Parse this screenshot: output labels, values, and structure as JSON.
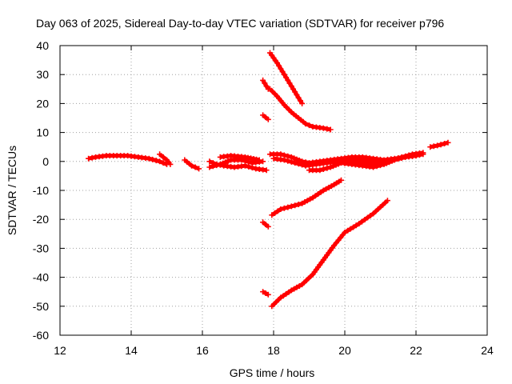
{
  "chart_data": {
    "type": "scatter",
    "title": "Day 063 of 2025, Sidereal Day-to-day VTEC variation (SDTVAR) for receiver p796",
    "xlabel": "GPS time / hours",
    "ylabel": "SDTVAR / TECUs",
    "xlim": [
      12,
      24
    ],
    "ylim": [
      -60,
      40
    ],
    "x_ticks": [
      12,
      14,
      16,
      18,
      20,
      22,
      24
    ],
    "y_ticks": [
      -60,
      -50,
      -40,
      -30,
      -20,
      -10,
      0,
      10,
      20,
      30,
      40
    ],
    "x_tick_labels": [
      "12",
      "14",
      "16",
      "18",
      "20",
      "22",
      "24"
    ],
    "y_tick_labels": [
      "-60",
      "-50",
      "-40",
      "-30",
      "-20",
      "-10",
      "0",
      "10",
      "20",
      "30",
      "40"
    ],
    "grid": true,
    "legend": "none",
    "marker": "plus",
    "color": "#ff0000",
    "series": [
      {
        "x": [
          12.8,
          13.0,
          13.3,
          13.6,
          13.9,
          14.2,
          14.5,
          14.8,
          15.0
        ],
        "y": [
          1.0,
          1.5,
          2.0,
          2.0,
          2.0,
          1.5,
          1.0,
          0.0,
          -1.0
        ]
      },
      {
        "x": [
          14.8,
          14.9,
          15.0,
          15.1
        ],
        "y": [
          2.5,
          1.5,
          0.5,
          -1.0
        ]
      },
      {
        "x": [
          15.5,
          15.7,
          15.9
        ],
        "y": [
          0.5,
          -1.5,
          -2.5
        ]
      },
      {
        "x": [
          16.2,
          16.4,
          16.6,
          16.9,
          17.2,
          17.5,
          17.8
        ],
        "y": [
          0.0,
          -1.0,
          -1.5,
          -2.0,
          -1.5,
          -2.5,
          -3.0
        ]
      },
      {
        "x": [
          16.2,
          16.5,
          16.8,
          17.1,
          17.4,
          17.7
        ],
        "y": [
          -2.0,
          -1.0,
          0.5,
          0.5,
          -0.5,
          0.0
        ]
      },
      {
        "x": [
          16.5,
          16.8,
          17.2,
          17.6
        ],
        "y": [
          1.5,
          2.0,
          1.5,
          0.5
        ]
      },
      {
        "x": [
          17.7,
          17.85
        ],
        "y": [
          28.0,
          25.0
        ]
      },
      {
        "x": [
          17.7,
          17.85
        ],
        "y": [
          16.0,
          14.5
        ]
      },
      {
        "x": [
          17.7,
          17.85
        ],
        "y": [
          -21.0,
          -22.5
        ]
      },
      {
        "x": [
          17.7,
          17.85
        ],
        "y": [
          -45.0,
          -46.0
        ]
      },
      {
        "x": [
          17.9,
          18.1,
          18.3,
          18.5,
          18.7,
          18.8
        ],
        "y": [
          37.5,
          34.0,
          30.0,
          26.0,
          22.0,
          20.0
        ]
      },
      {
        "x": [
          17.9,
          18.1,
          18.3,
          18.5,
          18.7,
          18.9,
          19.1,
          19.4,
          19.6
        ],
        "y": [
          25.0,
          22.5,
          19.5,
          17.0,
          15.0,
          13.0,
          12.0,
          11.5,
          11.0
        ]
      },
      {
        "x": [
          17.9,
          18.2,
          18.5,
          18.8,
          19.0,
          19.3,
          19.6,
          19.9,
          20.2,
          20.5,
          20.8,
          21.1,
          21.4,
          21.7,
          22.0,
          22.2
        ],
        "y": [
          2.5,
          2.5,
          1.5,
          0.0,
          -0.5,
          0.0,
          0.5,
          1.0,
          1.5,
          1.5,
          1.0,
          0.5,
          1.0,
          1.5,
          2.0,
          2.5
        ]
      },
      {
        "x": [
          18.0,
          18.3,
          18.6,
          18.9,
          19.2,
          19.5,
          19.8,
          20.1,
          20.4,
          20.7,
          21.0,
          21.3,
          21.6,
          21.9,
          22.2
        ],
        "y": [
          1.0,
          0.5,
          -0.5,
          -1.5,
          -1.0,
          -0.5,
          0.0,
          0.5,
          0.5,
          0.0,
          -0.5,
          0.5,
          1.5,
          2.5,
          3.0
        ]
      },
      {
        "x": [
          19.0,
          19.3,
          19.6,
          19.9,
          20.2,
          20.5,
          20.8,
          21.1,
          21.4,
          21.7,
          22.0
        ],
        "y": [
          -3.0,
          -3.0,
          -2.0,
          -0.5,
          -1.0,
          -1.5,
          -2.0,
          -1.0,
          0.5,
          1.5,
          2.0
        ]
      },
      {
        "x": [
          19.9,
          20.2,
          20.5,
          20.8,
          21.1
        ],
        "y": [
          0.0,
          -0.5,
          -1.0,
          -1.0,
          -0.5
        ]
      },
      {
        "x": [
          17.95,
          18.2,
          18.5,
          18.8,
          19.1,
          19.4,
          19.7,
          19.9
        ],
        "y": [
          -18.5,
          -16.5,
          -15.5,
          -14.5,
          -12.5,
          -10.0,
          -8.0,
          -6.5
        ]
      },
      {
        "x": [
          17.95,
          18.2,
          18.5,
          18.8,
          19.1,
          19.4,
          19.7,
          20.0,
          20.4,
          20.8,
          21.2
        ],
        "y": [
          -50.0,
          -47.0,
          -44.5,
          -42.5,
          -39.0,
          -34.0,
          -29.0,
          -24.5,
          -21.5,
          -18.0,
          -13.5
        ]
      },
      {
        "x": [
          22.4,
          22.6,
          22.9
        ],
        "y": [
          5.0,
          5.5,
          6.5
        ]
      }
    ]
  }
}
